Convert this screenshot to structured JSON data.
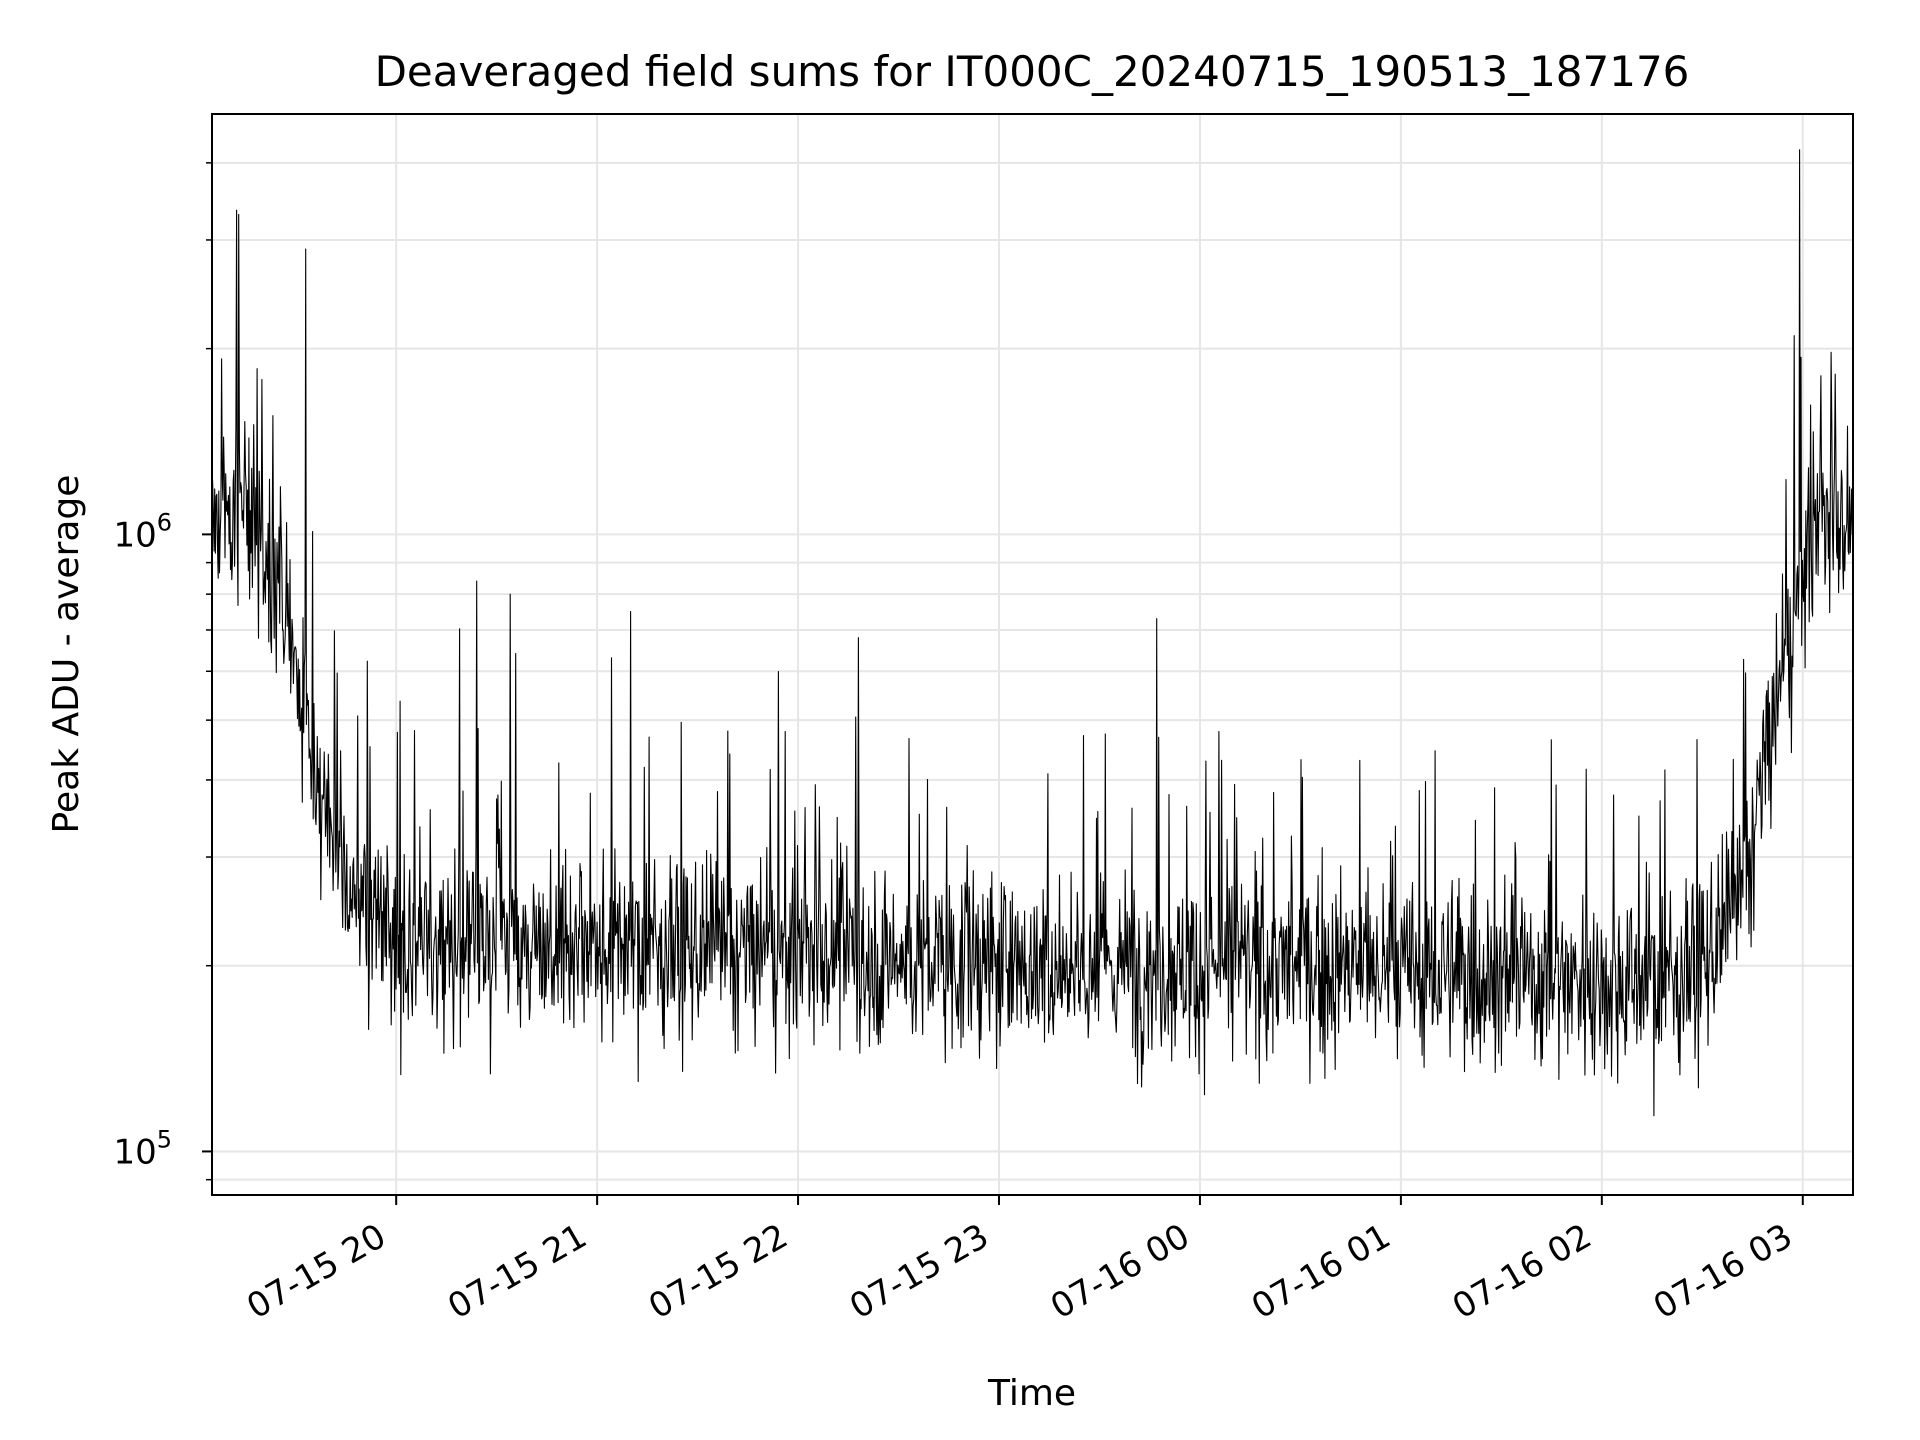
{
  "chart_data": {
    "type": "line",
    "title": "Deaveraged field sums for IT000C_20240715_190513_187176",
    "xlabel": "Time",
    "ylabel": "Peak ADU - average",
    "y_scale": "log",
    "grid": true,
    "line_color": "#000000",
    "grid_color": "#e6e6e6",
    "x_tick_labels": [
      "07-15 20",
      "07-15 21",
      "07-15 22",
      "07-15 23",
      "07-16 00",
      "07-16 01",
      "07-16 02",
      "07-16 03"
    ],
    "y_tick_labels": [
      {
        "base": "10",
        "exp": "5"
      },
      {
        "base": "10",
        "exp": "6"
      }
    ],
    "xlim": [
      "2024-07-15 19:05",
      "2024-07-16 03:15"
    ],
    "ylim": [
      85000,
      4800000
    ],
    "series": [
      {
        "x": [
          "2024-07-15 19:05",
          "2024-07-15 19:15",
          "2024-07-15 19:25",
          "2024-07-15 19:30",
          "2024-07-15 19:35",
          "2024-07-15 19:40",
          "2024-07-15 19:45",
          "2024-07-15 19:50",
          "2024-07-15 20:00",
          "2024-07-15 20:15",
          "2024-07-15 20:30",
          "2024-07-15 21:00",
          "2024-07-15 21:30",
          "2024-07-15 22:00",
          "2024-07-15 22:30",
          "2024-07-15 23:00",
          "2024-07-15 23:30",
          "2024-07-16 00:00",
          "2024-07-16 00:30",
          "2024-07-16 01:00",
          "2024-07-16 01:30",
          "2024-07-16 02:00",
          "2024-07-16 02:20",
          "2024-07-16 02:30",
          "2024-07-16 02:40",
          "2024-07-16 02:45",
          "2024-07-16 02:50",
          "2024-07-16 02:55",
          "2024-07-16 03:00",
          "2024-07-16 03:05",
          "2024-07-16 03:15"
        ],
        "y": [
          1100000,
          1100000,
          850000,
          580000,
          450000,
          340000,
          270000,
          240000,
          220000,
          215000,
          225000,
          220000,
          210000,
          210000,
          205000,
          200000,
          200000,
          200000,
          200000,
          195000,
          195000,
          190000,
          190000,
          200000,
          240000,
          320000,
          460000,
          620000,
          880000,
          1050000,
          1050000
        ],
        "peaks": [
          {
            "x": "2024-07-15 19:13",
            "y": 3300000
          },
          {
            "x": "2024-07-15 19:33",
            "y": 2900000
          },
          {
            "x": "2024-07-15 20:24",
            "y": 840000
          },
          {
            "x": "2024-07-15 20:34",
            "y": 800000
          },
          {
            "x": "2024-07-15 21:10",
            "y": 750000
          },
          {
            "x": "2024-07-15 22:18",
            "y": 680000
          },
          {
            "x": "2024-07-15 23:47",
            "y": 730000
          },
          {
            "x": "2024-07-16 02:59",
            "y": 4200000
          }
        ]
      }
    ]
  }
}
